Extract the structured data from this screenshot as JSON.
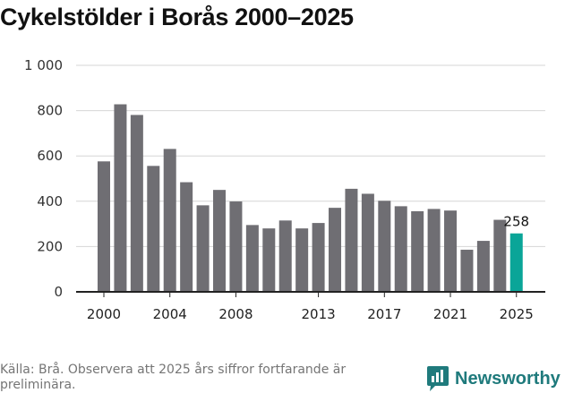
{
  "title": "Cykelstölder i Borås 2000–2025",
  "source_note": "Källa: Brå. Observera att 2025 års siffror fortfarande är preliminära.",
  "brand": {
    "name": "Newsworthy",
    "icon": "newsworthy-logo-icon"
  },
  "colors": {
    "bar": "#6f6e73",
    "highlight": "#0aa598",
    "grid": "#d6d6d6",
    "axis": "#222222",
    "brand": "#1f7a7c"
  },
  "chart_data": {
    "type": "bar",
    "title": "Cykelstölder i Borås 2000–2025",
    "xlabel": "",
    "ylabel": "",
    "ylim": [
      0,
      1000
    ],
    "yticks": [
      0,
      200,
      400,
      600,
      800,
      1000
    ],
    "ytick_labels": [
      "0",
      "200",
      "400",
      "600",
      "800",
      "1 000"
    ],
    "xtick_labels": [
      "2000",
      "2004",
      "2008",
      "2013",
      "2017",
      "2021",
      "2025"
    ],
    "categories": [
      "2000",
      "2001",
      "2002",
      "2003",
      "2004",
      "2005",
      "2006",
      "2007",
      "2008",
      "2009",
      "2010",
      "2011",
      "2012",
      "2013",
      "2014",
      "2015",
      "2016",
      "2017",
      "2018",
      "2019",
      "2020",
      "2021",
      "2022",
      "2023",
      "2024",
      "2025"
    ],
    "values": [
      576,
      828,
      781,
      556,
      631,
      484,
      382,
      450,
      399,
      295,
      280,
      315,
      280,
      304,
      371,
      455,
      433,
      402,
      378,
      356,
      366,
      359,
      186,
      225,
      318,
      258
    ],
    "highlight": {
      "category": "2025",
      "label": "258"
    }
  }
}
